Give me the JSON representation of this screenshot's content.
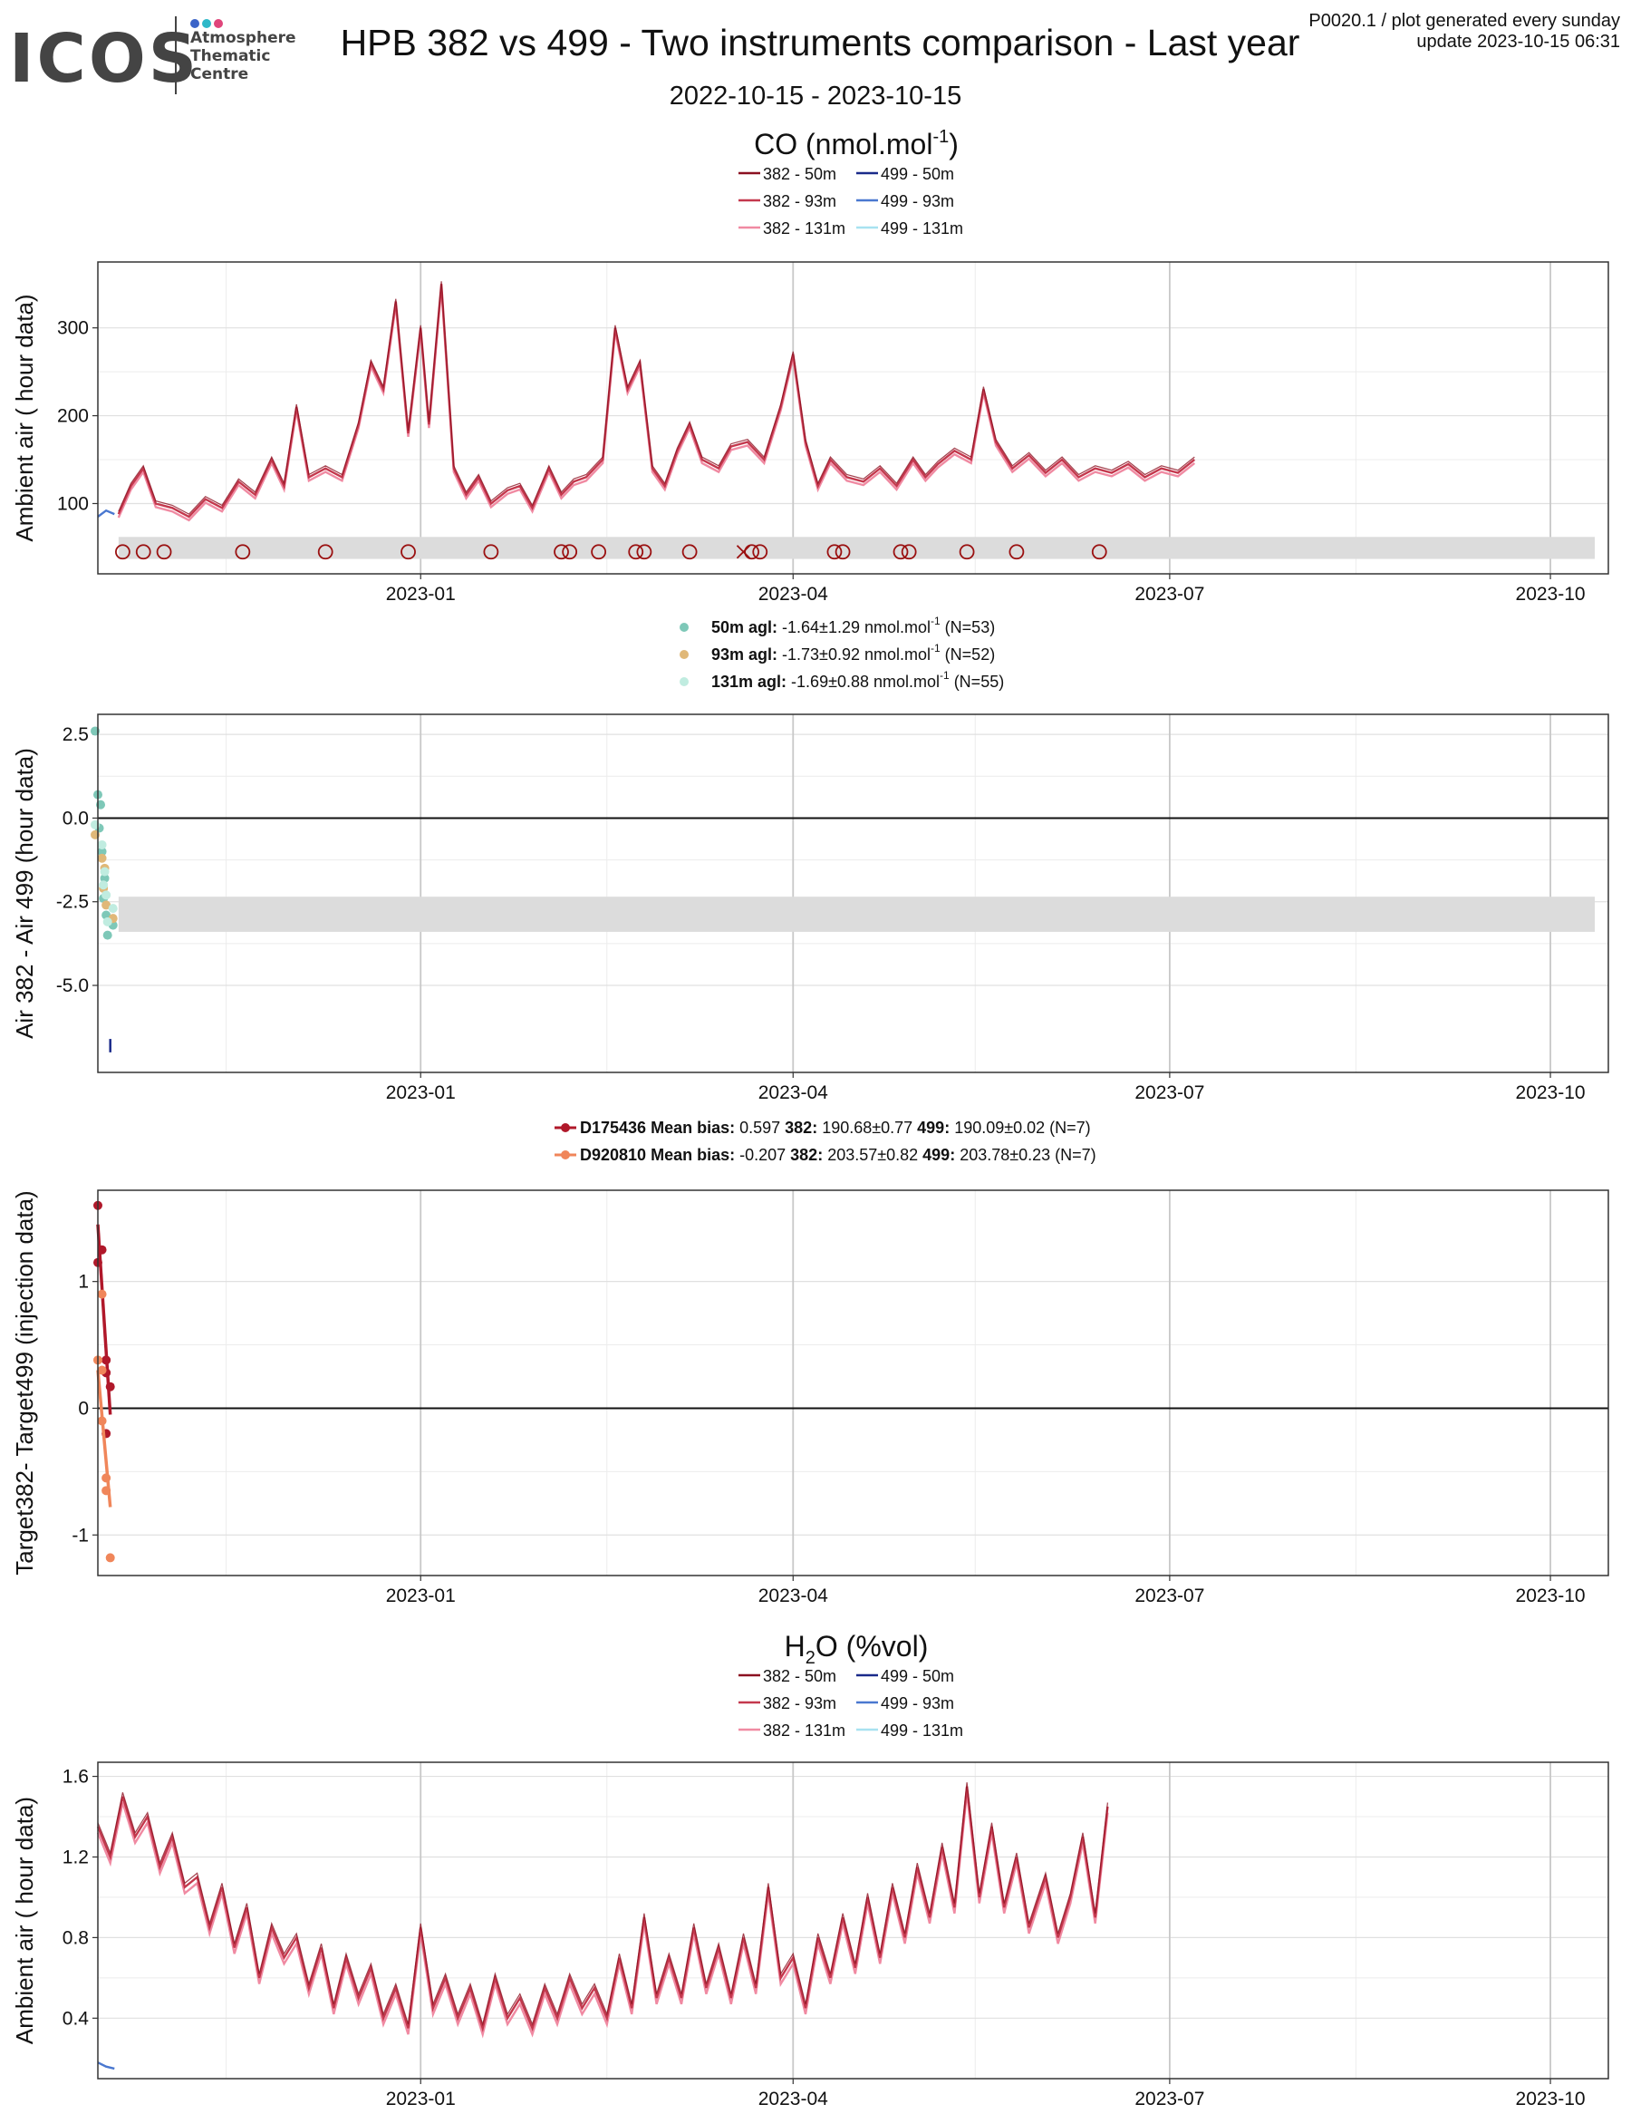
{
  "header": {
    "logo_text": "ICOS",
    "logo_lines": [
      "Atmosphere",
      "Thematic",
      "Centre"
    ],
    "logo_dot_colors": [
      "#3b64c8",
      "#2eb8c8",
      "#e0457b"
    ],
    "title": "HPB 382 vs 499 - Two instruments comparison - Last year",
    "meta_line1": "P0020.1 / plot generated every sunday",
    "meta_line2": "update  2023-10-15 06:31",
    "date_range": "2022-10-15 - 2023-10-15"
  },
  "colors": {
    "c382_50": "#8b1020",
    "c382_93": "#c4384d",
    "c382_131": "#f08aa2",
    "c499_50": "#1a2a8a",
    "c499_93": "#4a78d0",
    "c499_131": "#a8e2f0",
    "d50": "#7ec8b8",
    "d93": "#e0b878",
    "d131": "#c0ece0",
    "t1": "#b0182a",
    "t2": "#f0865a",
    "flag": "#9a1010",
    "band": "#dcdcdc"
  },
  "legend_ambient": {
    "items": [
      "382 - 50m",
      "382 - 93m",
      "382 - 131m",
      "499 - 50m",
      "499 - 93m",
      "499 - 131m"
    ]
  },
  "legend_diff": [
    {
      "bold": "50m agl:",
      "text": "-1.64±1.29 nmol.mol",
      "sup": "-1",
      "n": "(N=53)"
    },
    {
      "bold": "93m agl:",
      "text": "-1.73±0.92 nmol.mol",
      "sup": "-1",
      "n": "(N=52)"
    },
    {
      "bold": "131m agl:",
      "text": "-1.69±0.88 nmol.mol",
      "sup": "-1",
      "n": "(N=55)"
    }
  ],
  "legend_target": [
    {
      "name": "D175436",
      "bias_label": "Mean bias:",
      "bias": "0.597",
      "l382": "382:",
      "v382": "190.68±0.77",
      "l499": "499:",
      "v499": "190.09±0.02 (N=7)"
    },
    {
      "name": "D920810",
      "bias_label": "Mean bias:",
      "bias": "-0.207",
      "l382": "382:",
      "v382": "203.57±0.82",
      "l499": "499:",
      "v499": "203.78±0.23 (N=7)"
    }
  ],
  "chart_data": [
    {
      "type": "line",
      "title": "CO (nmol.mol",
      "title_sup": "-1",
      "title_tail": ")",
      "ylabel": "Ambient air ( hour data)",
      "xlim": [
        "2022-10-15",
        "2023-10-15"
      ],
      "ylim": [
        20,
        375
      ],
      "yticks": [
        100,
        200,
        300
      ],
      "xticks": [
        "2023-01",
        "2023-04",
        "2023-07",
        "2023-10"
      ],
      "grid": true,
      "band": [
        37,
        62
      ],
      "series": [
        {
          "name": "382 - 93m",
          "points": [
            [
              "2022-10-20",
              88
            ],
            [
              "2022-10-23",
              120
            ],
            [
              "2022-10-26",
              140
            ],
            [
              "2022-10-29",
              100
            ],
            [
              "2022-11-02",
              95
            ],
            [
              "2022-11-06",
              85
            ],
            [
              "2022-11-10",
              105
            ],
            [
              "2022-11-14",
              95
            ],
            [
              "2022-11-18",
              125
            ],
            [
              "2022-11-22",
              110
            ],
            [
              "2022-11-26",
              150
            ],
            [
              "2022-11-29",
              120
            ],
            [
              "2022-12-02",
              210
            ],
            [
              "2022-12-05",
              130
            ],
            [
              "2022-12-09",
              140
            ],
            [
              "2022-12-13",
              130
            ],
            [
              "2022-12-17",
              190
            ],
            [
              "2022-12-20",
              260
            ],
            [
              "2022-12-23",
              230
            ],
            [
              "2022-12-26",
              330
            ],
            [
              "2022-12-29",
              180
            ],
            [
              "2023-01-01",
              300
            ],
            [
              "2023-01-03",
              190
            ],
            [
              "2023-01-06",
              350
            ],
            [
              "2023-01-09",
              140
            ],
            [
              "2023-01-12",
              110
            ],
            [
              "2023-01-15",
              130
            ],
            [
              "2023-01-18",
              100
            ],
            [
              "2023-01-22",
              115
            ],
            [
              "2023-01-25",
              120
            ],
            [
              "2023-01-28",
              95
            ],
            [
              "2023-02-01",
              140
            ],
            [
              "2023-02-04",
              110
            ],
            [
              "2023-02-07",
              125
            ],
            [
              "2023-02-10",
              130
            ],
            [
              "2023-02-14",
              150
            ],
            [
              "2023-02-17",
              300
            ],
            [
              "2023-02-20",
              230
            ],
            [
              "2023-02-23",
              260
            ],
            [
              "2023-02-26",
              140
            ],
            [
              "2023-03-01",
              120
            ],
            [
              "2023-03-04",
              160
            ],
            [
              "2023-03-07",
              190
            ],
            [
              "2023-03-10",
              150
            ],
            [
              "2023-03-14",
              140
            ],
            [
              "2023-03-17",
              165
            ],
            [
              "2023-03-21",
              170
            ],
            [
              "2023-03-25",
              150
            ],
            [
              "2023-03-29",
              210
            ],
            [
              "2023-04-01",
              270
            ],
            [
              "2023-04-04",
              170
            ],
            [
              "2023-04-07",
              120
            ],
            [
              "2023-04-10",
              150
            ],
            [
              "2023-04-14",
              130
            ],
            [
              "2023-04-18",
              125
            ],
            [
              "2023-04-22",
              140
            ],
            [
              "2023-04-26",
              120
            ],
            [
              "2023-04-30",
              150
            ],
            [
              "2023-05-03",
              130
            ],
            [
              "2023-05-06",
              145
            ],
            [
              "2023-05-10",
              160
            ],
            [
              "2023-05-14",
              150
            ],
            [
              "2023-05-17",
              230
            ],
            [
              "2023-05-20",
              170
            ],
            [
              "2023-05-24",
              140
            ],
            [
              "2023-05-28",
              155
            ],
            [
              "2023-06-01",
              135
            ],
            [
              "2023-06-05",
              150
            ],
            [
              "2023-06-09",
              130
            ],
            [
              "2023-06-13",
              140
            ],
            [
              "2023-06-17",
              135
            ],
            [
              "2023-06-21",
              145
            ],
            [
              "2023-06-25",
              130
            ],
            [
              "2023-06-29",
              140
            ],
            [
              "2023-07-03",
              135
            ],
            [
              "2023-07-07",
              150
            ]
          ]
        },
        {
          "name": "499 - 93m",
          "points": [
            [
              "2022-10-15",
              85
            ],
            [
              "2022-10-17",
              92
            ],
            [
              "2022-10-19",
              88
            ]
          ]
        }
      ],
      "flags_o": [
        "2022-10-21",
        "2022-10-26",
        "2022-10-31",
        "2022-11-19",
        "2022-12-09",
        "2022-12-29",
        "2023-01-18",
        "2023-02-04",
        "2023-02-06",
        "2023-02-13",
        "2023-02-22",
        "2023-02-24",
        "2023-03-07",
        "2023-03-22",
        "2023-03-24",
        "2023-04-11",
        "2023-04-13",
        "2023-04-27",
        "2023-04-29",
        "2023-05-13",
        "2023-05-25",
        "2023-06-14"
      ],
      "flags_x": [
        "2023-03-20"
      ],
      "flag_y": 45
    },
    {
      "type": "scatter",
      "ylabel": "Air 382 - Air 499 (hour data)",
      "xlim": [
        "2022-10-15",
        "2023-10-15"
      ],
      "ylim": [
        -7.6,
        3.1
      ],
      "yticks": [
        -5.0,
        -2.5,
        0.0,
        2.5
      ],
      "ytick_labels": [
        "-5.0",
        "-2.5",
        "0.0",
        "2.5"
      ],
      "xticks": [
        "2023-01",
        "2023-04",
        "2023-07",
        "2023-10"
      ],
      "grid": true,
      "band": [
        -3.4,
        -2.35
      ],
      "zero_line": 0,
      "series": [
        {
          "name": "50m agl",
          "x": [
            "2022-10-15",
            "2022-10-15",
            "2022-10-15",
            "2022-10-16",
            "2022-10-16",
            "2022-10-16",
            "2022-10-17",
            "2022-10-17",
            "2022-10-18",
            "2022-10-18"
          ],
          "y": [
            2.6,
            0.7,
            0.4,
            -0.3,
            -1.0,
            -1.8,
            -2.4,
            -2.9,
            -3.2,
            -3.5
          ]
        },
        {
          "name": "93m agl",
          "x": [
            "2022-10-15",
            "2022-10-16",
            "2022-10-16",
            "2022-10-17",
            "2022-10-17",
            "2022-10-18"
          ],
          "y": [
            -0.5,
            -1.2,
            -1.5,
            -2.1,
            -2.6,
            -3.0
          ]
        },
        {
          "name": "131m agl",
          "x": [
            "2022-10-15",
            "2022-10-16",
            "2022-10-16",
            "2022-10-17",
            "2022-10-17",
            "2022-10-18",
            "2022-10-18"
          ],
          "y": [
            -0.2,
            -0.8,
            -1.6,
            -2.0,
            -2.3,
            -2.7,
            -3.1
          ]
        }
      ],
      "segment": {
        "x": "2022-10-18",
        "y0": -6.6,
        "y1": -7.0
      }
    },
    {
      "type": "scatter",
      "ylabel": "Target382- Target499 (injection data)",
      "xlim": [
        "2022-10-15",
        "2023-10-15"
      ],
      "ylim": [
        -1.32,
        1.72
      ],
      "yticks": [
        -1,
        0,
        1
      ],
      "ytick_labels": [
        "-1",
        "0",
        "1"
      ],
      "xticks": [
        "2023-01",
        "2023-04",
        "2023-07",
        "2023-10"
      ],
      "grid": true,
      "zero_line": 0,
      "series": [
        {
          "name": "D175436",
          "x": [
            "2022-10-15",
            "2022-10-15",
            "2022-10-16",
            "2022-10-17",
            "2022-10-17",
            "2022-10-18",
            "2022-10-17"
          ],
          "y": [
            1.6,
            1.15,
            1.25,
            0.38,
            0.28,
            0.17,
            -0.2
          ],
          "fit": [
            [
              "2022-10-15",
              1.45
            ],
            [
              "2022-10-18",
              -0.05
            ]
          ]
        },
        {
          "name": "D920810",
          "x": [
            "2022-10-15",
            "2022-10-16",
            "2022-10-16",
            "2022-10-17",
            "2022-10-17",
            "2022-10-16",
            "2022-10-18"
          ],
          "y": [
            0.38,
            0.9,
            0.3,
            -0.55,
            -0.65,
            -0.1,
            -1.18
          ],
          "fit": [
            [
              "2022-10-15",
              0.3
            ],
            [
              "2022-10-18",
              -0.78
            ]
          ]
        }
      ]
    },
    {
      "type": "line",
      "title": "H",
      "title_sub": "2",
      "title_tail": "O (%vol)",
      "ylabel": "Ambient air ( hour data)",
      "xlim": [
        "2022-10-15",
        "2023-10-15"
      ],
      "ylim": [
        0.1,
        1.67
      ],
      "yticks": [
        0.4,
        0.8,
        1.2,
        1.6
      ],
      "ytick_labels": [
        "0.4",
        "0.8",
        "1.2",
        "1.6"
      ],
      "xticks": [
        "2023-01",
        "2023-04",
        "2023-07",
        "2023-10"
      ],
      "grid": true,
      "series": [
        {
          "name": "382 - 93m",
          "points": [
            [
              "2022-10-15",
              1.35
            ],
            [
              "2022-10-18",
              1.2
            ],
            [
              "2022-10-21",
              1.5
            ],
            [
              "2022-10-24",
              1.3
            ],
            [
              "2022-10-27",
              1.4
            ],
            [
              "2022-10-30",
              1.15
            ],
            [
              "2022-11-02",
              1.3
            ],
            [
              "2022-11-05",
              1.05
            ],
            [
              "2022-11-08",
              1.1
            ],
            [
              "2022-11-11",
              0.85
            ],
            [
              "2022-11-14",
              1.05
            ],
            [
              "2022-11-17",
              0.75
            ],
            [
              "2022-11-20",
              0.95
            ],
            [
              "2022-11-23",
              0.6
            ],
            [
              "2022-11-26",
              0.85
            ],
            [
              "2022-11-29",
              0.7
            ],
            [
              "2022-12-02",
              0.8
            ],
            [
              "2022-12-05",
              0.55
            ],
            [
              "2022-12-08",
              0.75
            ],
            [
              "2022-12-11",
              0.45
            ],
            [
              "2022-12-14",
              0.7
            ],
            [
              "2022-12-17",
              0.5
            ],
            [
              "2022-12-20",
              0.65
            ],
            [
              "2022-12-23",
              0.4
            ],
            [
              "2022-12-26",
              0.55
            ],
            [
              "2022-12-29",
              0.35
            ],
            [
              "2023-01-01",
              0.85
            ],
            [
              "2023-01-04",
              0.45
            ],
            [
              "2023-01-07",
              0.6
            ],
            [
              "2023-01-10",
              0.4
            ],
            [
              "2023-01-13",
              0.55
            ],
            [
              "2023-01-16",
              0.35
            ],
            [
              "2023-01-19",
              0.6
            ],
            [
              "2023-01-22",
              0.4
            ],
            [
              "2023-01-25",
              0.5
            ],
            [
              "2023-01-28",
              0.35
            ],
            [
              "2023-01-31",
              0.55
            ],
            [
              "2023-02-03",
              0.4
            ],
            [
              "2023-02-06",
              0.6
            ],
            [
              "2023-02-09",
              0.45
            ],
            [
              "2023-02-12",
              0.55
            ],
            [
              "2023-02-15",
              0.4
            ],
            [
              "2023-02-18",
              0.7
            ],
            [
              "2023-02-21",
              0.45
            ],
            [
              "2023-02-24",
              0.9
            ],
            [
              "2023-02-27",
              0.5
            ],
            [
              "2023-03-02",
              0.7
            ],
            [
              "2023-03-05",
              0.5
            ],
            [
              "2023-03-08",
              0.85
            ],
            [
              "2023-03-11",
              0.55
            ],
            [
              "2023-03-14",
              0.75
            ],
            [
              "2023-03-17",
              0.5
            ],
            [
              "2023-03-20",
              0.8
            ],
            [
              "2023-03-23",
              0.55
            ],
            [
              "2023-03-26",
              1.05
            ],
            [
              "2023-03-29",
              0.6
            ],
            [
              "2023-04-01",
              0.7
            ],
            [
              "2023-04-04",
              0.45
            ],
            [
              "2023-04-07",
              0.8
            ],
            [
              "2023-04-10",
              0.6
            ],
            [
              "2023-04-13",
              0.9
            ],
            [
              "2023-04-16",
              0.65
            ],
            [
              "2023-04-19",
              1.0
            ],
            [
              "2023-04-22",
              0.7
            ],
            [
              "2023-04-25",
              1.05
            ],
            [
              "2023-04-28",
              0.8
            ],
            [
              "2023-05-01",
              1.15
            ],
            [
              "2023-05-04",
              0.9
            ],
            [
              "2023-05-07",
              1.25
            ],
            [
              "2023-05-10",
              0.95
            ],
            [
              "2023-05-13",
              1.55
            ],
            [
              "2023-05-16",
              1.0
            ],
            [
              "2023-05-19",
              1.35
            ],
            [
              "2023-05-22",
              0.95
            ],
            [
              "2023-05-25",
              1.2
            ],
            [
              "2023-05-28",
              0.85
            ],
            [
              "2023-06-01",
              1.1
            ],
            [
              "2023-06-04",
              0.8
            ],
            [
              "2023-06-07",
              1.0
            ],
            [
              "2023-06-10",
              1.3
            ],
            [
              "2023-06-13",
              0.9
            ],
            [
              "2023-06-16",
              1.45
            ]
          ]
        },
        {
          "name": "499 - 93m",
          "points": [
            [
              "2022-10-15",
              0.18
            ],
            [
              "2022-10-17",
              0.16
            ],
            [
              "2022-10-19",
              0.15
            ]
          ]
        }
      ]
    }
  ]
}
